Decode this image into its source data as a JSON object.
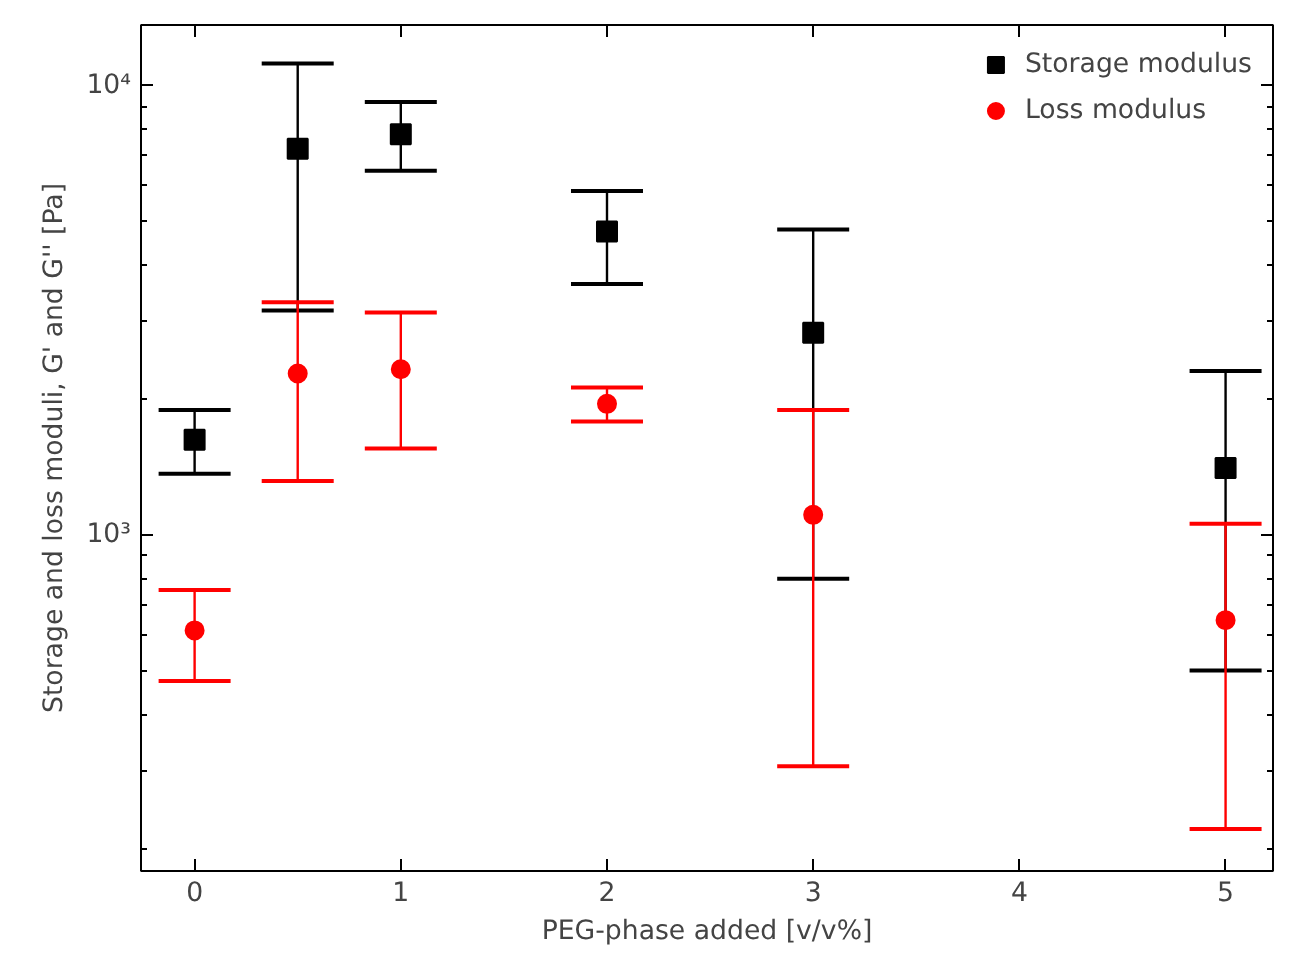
{
  "chart_data": {
    "type": "scatter",
    "xlabel": "PEG-phase added [v/v%]",
    "ylabel": "Storage and loss moduli, G' and G'' [Pa]",
    "x": [
      0,
      0.5,
      1,
      2,
      3,
      5
    ],
    "series": [
      {
        "name": "Storage modulus",
        "color": "#000000",
        "marker": "square",
        "values": [
          1630,
          7240,
          7800,
          4740,
          2820,
          1410
        ],
        "errors": [
          [
            1370,
            1900
          ],
          [
            3160,
            11200
          ],
          [
            6470,
            9200
          ],
          [
            3620,
            5830
          ],
          [
            800,
            4790
          ],
          [
            500,
            2320
          ]
        ]
      },
      {
        "name": "Loss modulus",
        "color": "#ff0000",
        "marker": "circle",
        "values": [
          614,
          2290,
          2340,
          1960,
          1110,
          647
        ],
        "errors": [
          [
            474,
            755
          ],
          [
            1320,
            3300
          ],
          [
            1560,
            3130
          ],
          [
            1790,
            2130
          ],
          [
            306,
            1900
          ],
          [
            222,
            1060
          ]
        ]
      }
    ],
    "log": "y",
    "xlim": [
      -0.26,
      5.23
    ],
    "ylim": [
      179,
      13650
    ],
    "xticks": [
      0,
      1,
      2,
      3,
      4,
      5
    ],
    "yticks": [
      {
        "value": 1000,
        "label": "10³"
      },
      {
        "value": 10000,
        "label": "10⁴"
      }
    ],
    "grid": false,
    "legend": "top right"
  }
}
